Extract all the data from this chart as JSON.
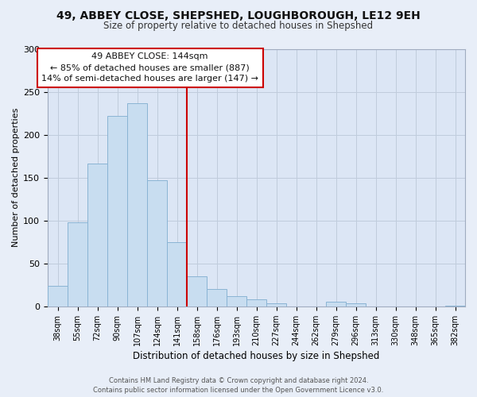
{
  "title_line1": "49, ABBEY CLOSE, SHEPSHED, LOUGHBOROUGH, LE12 9EH",
  "title_line2": "Size of property relative to detached houses in Shepshed",
  "xlabel": "Distribution of detached houses by size in Shepshed",
  "ylabel": "Number of detached properties",
  "bar_labels": [
    "38sqm",
    "55sqm",
    "72sqm",
    "90sqm",
    "107sqm",
    "124sqm",
    "141sqm",
    "158sqm",
    "176sqm",
    "193sqm",
    "210sqm",
    "227sqm",
    "244sqm",
    "262sqm",
    "279sqm",
    "296sqm",
    "313sqm",
    "330sqm",
    "348sqm",
    "365sqm",
    "382sqm"
  ],
  "bar_values": [
    24,
    98,
    166,
    222,
    237,
    147,
    75,
    35,
    20,
    12,
    8,
    4,
    0,
    0,
    5,
    4,
    0,
    0,
    0,
    0,
    1
  ],
  "bar_color": "#c8ddf0",
  "bar_edge_color": "#8ab4d4",
  "vline_color": "#cc0000",
  "ylim": [
    0,
    300
  ],
  "yticks": [
    0,
    50,
    100,
    150,
    200,
    250,
    300
  ],
  "annotation_title": "49 ABBEY CLOSE: 144sqm",
  "annotation_line1": "← 85% of detached houses are smaller (887)",
  "annotation_line2": "14% of semi-detached houses are larger (147) →",
  "footer_line1": "Contains HM Land Registry data © Crown copyright and database right 2024.",
  "footer_line2": "Contains public sector information licensed under the Open Government Licence v3.0.",
  "bg_color": "#e8eef8",
  "plot_bg_color": "#dce6f5",
  "grid_color": "#c0ccdc"
}
